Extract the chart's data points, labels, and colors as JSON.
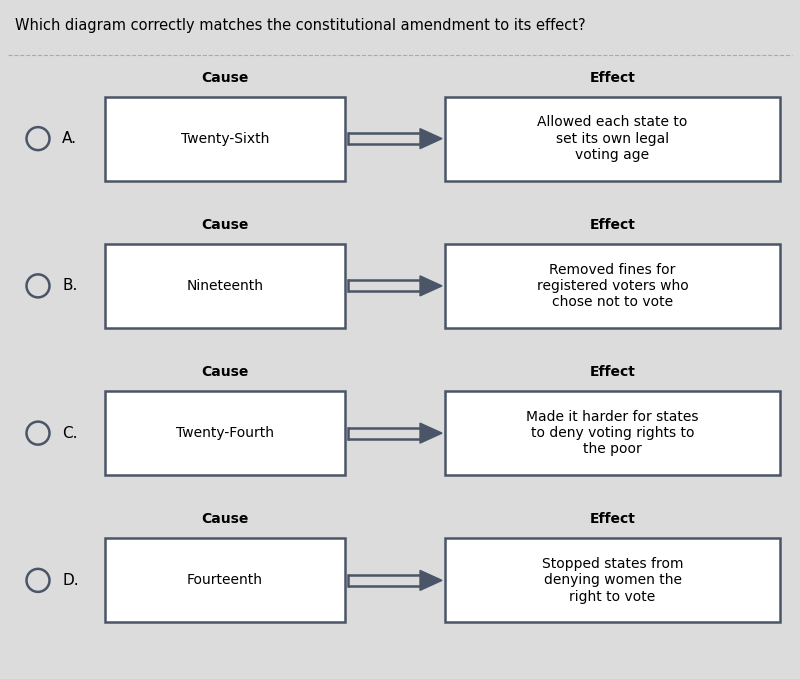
{
  "title": "Which diagram correctly matches the constitutional amendment to its effect?",
  "background_color": "#dcdcdc",
  "rows": [
    {
      "label": "A.",
      "cause": "Twenty-Sixth",
      "effect": "Allowed each state to\nset its own legal\nvoting age"
    },
    {
      "label": "B.",
      "cause": "Nineteenth",
      "effect": "Removed fines for\nregistered voters who\nchose not to vote"
    },
    {
      "label": "C.",
      "cause": "Twenty-Fourth",
      "effect": "Made it harder for states\nto deny voting rights to\nthe poor"
    },
    {
      "label": "D.",
      "cause": "Fourteenth",
      "effect": "Stopped states from\ndenying women the\nright to vote"
    }
  ],
  "cause_label": "Cause",
  "effect_label": "Effect",
  "box_edge_color": "#4a5568",
  "box_face_color": "#ffffff",
  "arrow_color": "#4a5568",
  "title_fontsize": 10.5,
  "label_fontsize": 11,
  "cause_effect_fontsize": 10,
  "header_fontsize": 10,
  "separator_color": "#aaaaaa"
}
